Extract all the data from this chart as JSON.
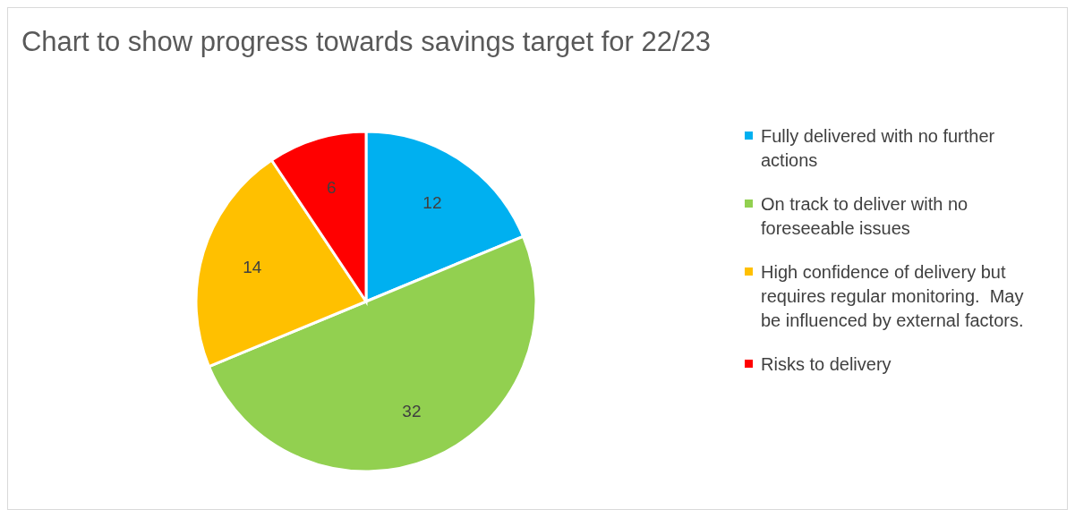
{
  "chart_data": {
    "type": "pie",
    "title": "Chart to show progress towards savings target for 22/23",
    "categories": [
      "Fully delivered with no further actions",
      "On track to deliver with no foreseeable issues",
      "High confidence of delivery but requires regular monitoring.  May be influenced by external factors.",
      "Risks to delivery"
    ],
    "values": [
      12,
      32,
      14,
      6
    ],
    "colors": [
      "#00b0f0",
      "#92d050",
      "#ffc000",
      "#ff0000"
    ],
    "data_labels": true,
    "legend": "right"
  }
}
